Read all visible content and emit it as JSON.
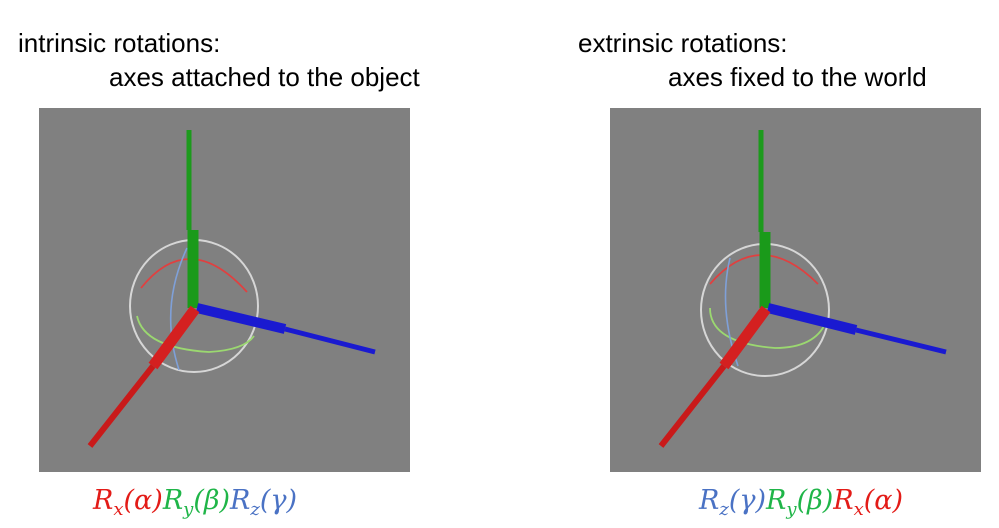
{
  "left": {
    "heading": "intrinsic rotations:",
    "subheading": "axes attached to the object",
    "formula": [
      {
        "letter": "R",
        "sub": "x",
        "arg": "(α)",
        "color": "#e31b17"
      },
      {
        "letter": "R",
        "sub": "y",
        "arg": "(β)",
        "color": "#1fb548"
      },
      {
        "letter": "R",
        "sub": "z",
        "arg": "(γ)",
        "color": "#4a72c4"
      }
    ]
  },
  "right": {
    "heading": "extrinsic rotations:",
    "subheading": "axes fixed to the world",
    "formula": [
      {
        "letter": "R",
        "sub": "z",
        "arg": "(γ)",
        "color": "#4a72c4"
      },
      {
        "letter": "R",
        "sub": "y",
        "arg": "(β)",
        "color": "#1fb548"
      },
      {
        "letter": "R",
        "sub": "x",
        "arg": "(α)",
        "color": "#e31b17"
      }
    ]
  },
  "colors": {
    "x_axis": "#d42020",
    "y_axis": "#1c9a1c",
    "z_axis": "#1a1ad0",
    "panel_bg": "#808080"
  }
}
